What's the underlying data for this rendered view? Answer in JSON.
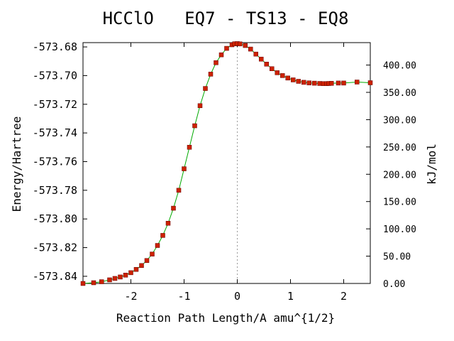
{
  "chart_data": {
    "type": "line",
    "title": "HCClO   EQ7 - TS13 - EQ8",
    "xlabel": "Reaction Path Length/A amu^{1/2}",
    "ylabel": "Energy/Hartree",
    "y2label": "kJ/mol",
    "xlim": [
      -2.9,
      2.5
    ],
    "ylim": [
      -573.845,
      -573.677
    ],
    "xticks": [
      -2,
      -1,
      0,
      1,
      2
    ],
    "xtick_labels": [
      "-2",
      "-1",
      "0",
      "1",
      "2"
    ],
    "yticks": [
      -573.84,
      -573.82,
      -573.8,
      -573.78,
      -573.76,
      -573.74,
      -573.72,
      -573.7,
      -573.68
    ],
    "ytick_labels": [
      "-573.84",
      "-573.82",
      "-573.80",
      "-573.78",
      "-573.76",
      "-573.74",
      "-573.72",
      "-573.70",
      "-573.68"
    ],
    "y2ticks": [
      0,
      50,
      100,
      150,
      200,
      250,
      300,
      350,
      400
    ],
    "y2tick_labels": [
      "0.00",
      "50.00",
      "100.00",
      "150.00",
      "200.00",
      "250.00",
      "300.00",
      "350.00",
      "400.00"
    ],
    "y2_reference_energy": -573.845,
    "y2_hartree_to_kjmol": 2625.5,
    "vline_x": 0,
    "line_color": "#00aa00",
    "marker_color": "#cc2200",
    "vline_color": "#999999",
    "series": [
      {
        "x": [
          -2.9,
          -2.7,
          -2.55,
          -2.4,
          -2.3,
          -2.2,
          -2.1,
          -2.0,
          -1.9,
          -1.8,
          -1.7,
          -1.6,
          -1.5,
          -1.4,
          -1.3,
          -1.2,
          -1.1,
          -1.0,
          -0.9,
          -0.8,
          -0.7,
          -0.6,
          -0.5,
          -0.4,
          -0.3,
          -0.2,
          -0.1,
          -0.05,
          0.0,
          0.05,
          0.15,
          0.25,
          0.35,
          0.45,
          0.55,
          0.65,
          0.75,
          0.85,
          0.95,
          1.05,
          1.15,
          1.25,
          1.35,
          1.45,
          1.55,
          1.62,
          1.68,
          1.72,
          1.77,
          1.9,
          2.0,
          2.25,
          2.5
        ],
        "y": [
          -573.845,
          -573.8445,
          -573.8438,
          -573.8425,
          -573.8415,
          -573.8405,
          -573.8392,
          -573.8375,
          -573.8352,
          -573.8325,
          -573.829,
          -573.8245,
          -573.8185,
          -573.8115,
          -573.803,
          -573.7925,
          -573.78,
          -573.765,
          -573.75,
          -573.735,
          -573.721,
          -573.709,
          -573.699,
          -573.691,
          -573.6855,
          -573.681,
          -573.6785,
          -573.6778,
          -573.6777,
          -573.6779,
          -573.679,
          -573.6815,
          -573.685,
          -573.6885,
          -573.692,
          -573.6952,
          -573.698,
          -573.7,
          -573.7017,
          -573.703,
          -573.704,
          -573.7047,
          -573.7051,
          -573.7053,
          -573.7055,
          -573.7056,
          -573.7056,
          -573.7055,
          -573.7054,
          -573.7052,
          -573.7052,
          -573.7045,
          -573.705
        ]
      }
    ]
  }
}
